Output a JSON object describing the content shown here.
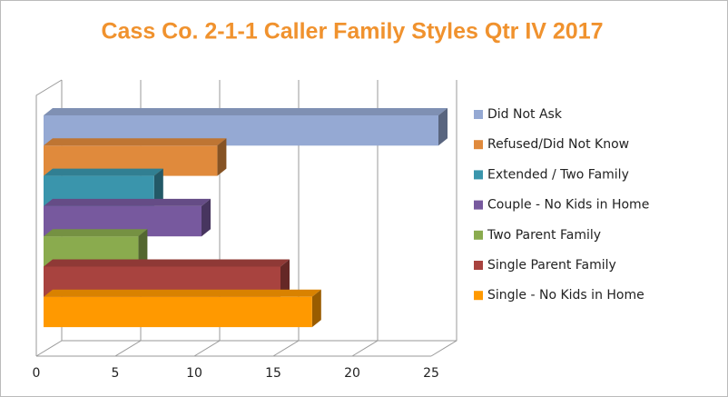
{
  "chart_data": {
    "type": "bar3d_horizontal",
    "title": "Cass Co. 2-1-1 Caller Family Styles Qtr IV 2017",
    "categories": [
      "Did Not Ask",
      "Refused/Did Not Know",
      "Extended / Two Family",
      "Couple - No Kids in Home",
      "Two Parent Family",
      "Single Parent Family",
      "Single - No Kids in Home"
    ],
    "values": [
      25,
      11,
      7,
      10,
      6,
      15,
      17
    ],
    "colors": [
      "#95a9d3",
      "#e08a3c",
      "#3a95ac",
      "#77599e",
      "#8aab4e",
      "#a8433f",
      "#ff9900"
    ],
    "xlim": [
      0,
      25
    ],
    "xticks": [
      0,
      5,
      10,
      15,
      20,
      25
    ],
    "grid": true,
    "legend": "right"
  }
}
